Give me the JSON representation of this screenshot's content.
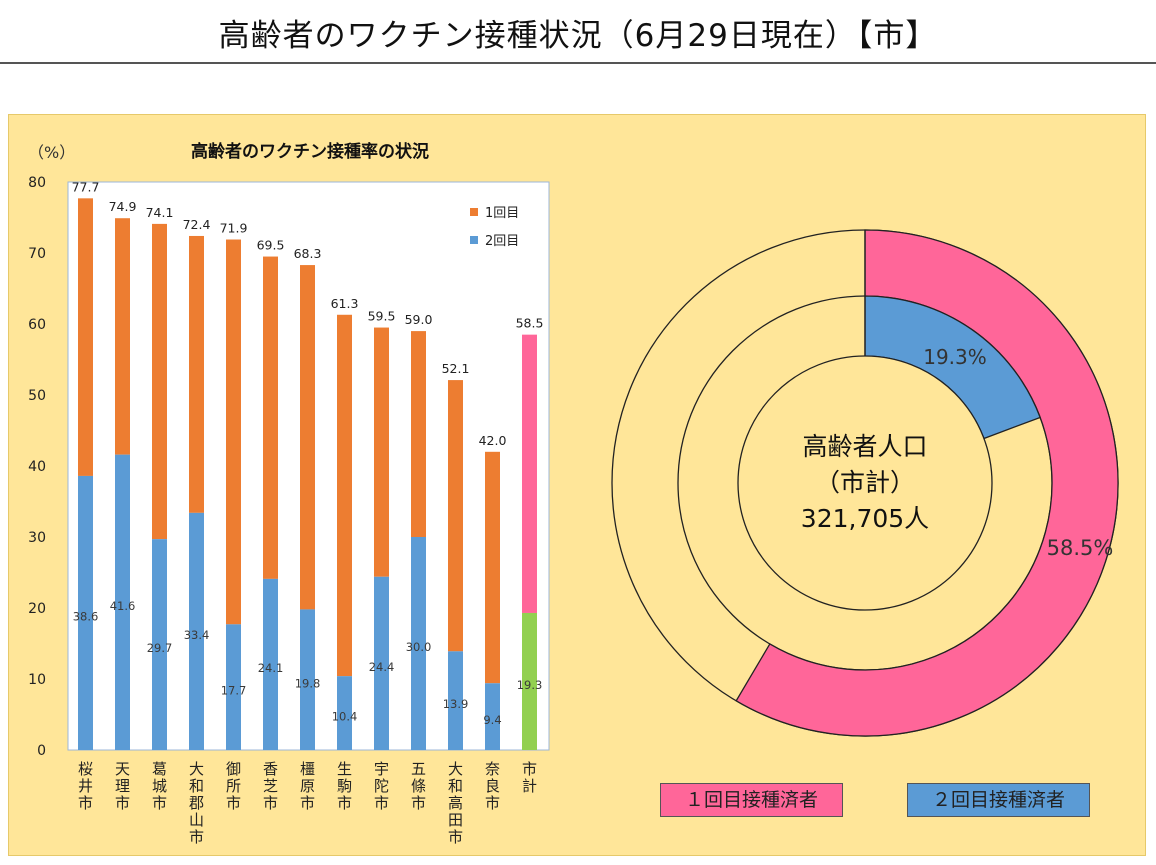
{
  "page_title": "高齢者のワクチン接種状況（6月29日現在）【市】",
  "chart_data": [
    {
      "type": "bar",
      "title": "高齢者のワクチン接種率の状況",
      "ylabel": "（%）",
      "ylim": [
        0,
        80
      ],
      "yticks": [
        "0",
        "10",
        "20",
        "30",
        "40",
        "50",
        "60",
        "70",
        "80"
      ],
      "categories": [
        [
          "桜",
          "井",
          "市"
        ],
        [
          "天",
          "理",
          "市"
        ],
        [
          "葛",
          "城",
          "市"
        ],
        [
          "大",
          "和",
          "郡",
          "山",
          "市"
        ],
        [
          "御",
          "所",
          "市"
        ],
        [
          "香",
          "芝",
          "市"
        ],
        [
          "橿",
          "原",
          "市"
        ],
        [
          "生",
          "駒",
          "市"
        ],
        [
          "宇",
          "陀",
          "市"
        ],
        [
          "五",
          "條",
          "市"
        ],
        [
          "大",
          "和",
          "高",
          "田",
          "市"
        ],
        [
          "奈",
          "良",
          "市"
        ],
        [
          "市",
          "計"
        ]
      ],
      "series": [
        {
          "name": "1回目",
          "color": "#ed7d31",
          "values": [
            77.7,
            74.9,
            74.1,
            72.4,
            71.9,
            69.5,
            68.3,
            61.3,
            59.5,
            59.0,
            52.1,
            42.0,
            58.5
          ]
        },
        {
          "name": "2回目",
          "color": "#5b9bd5",
          "values": [
            38.6,
            41.6,
            29.7,
            33.4,
            17.7,
            24.1,
            19.8,
            10.4,
            24.4,
            30.0,
            13.9,
            9.4,
            19.3
          ]
        }
      ],
      "total_bar_colors": {
        "first": "#ff6699",
        "second": "#92d050"
      },
      "top_labels": [
        "77.7",
        "74.9",
        "74.1",
        "72.4",
        "71.9",
        "69.5",
        "68.3",
        "61.3",
        "59.5",
        "59.0",
        "52.1",
        "42.0",
        "58.5"
      ],
      "inner_labels": [
        "38.6",
        "41.6",
        "29.7",
        "33.4",
        "17.7",
        "24.1",
        "19.8",
        "10.4",
        "24.4",
        "30.0",
        "13.9",
        "9.4",
        "19.3"
      ],
      "legend": [
        "1回目",
        "2回目"
      ]
    },
    {
      "type": "pie",
      "center_label": [
        "高齢者人口",
        "（市計）",
        "321,705人"
      ],
      "rings": [
        {
          "name": "1回目接種済者",
          "value": 58.5,
          "label": "58.5%",
          "color": "#ff6699"
        },
        {
          "name": "2回目接種済者",
          "value": 19.3,
          "label": "19.3%",
          "color": "#5b9bd5"
        }
      ]
    }
  ],
  "legend_boxes": [
    {
      "label": "１回目接種済者",
      "color": "#ff6699"
    },
    {
      "label": "２回目接種済者",
      "color": "#5b9bd5"
    }
  ]
}
